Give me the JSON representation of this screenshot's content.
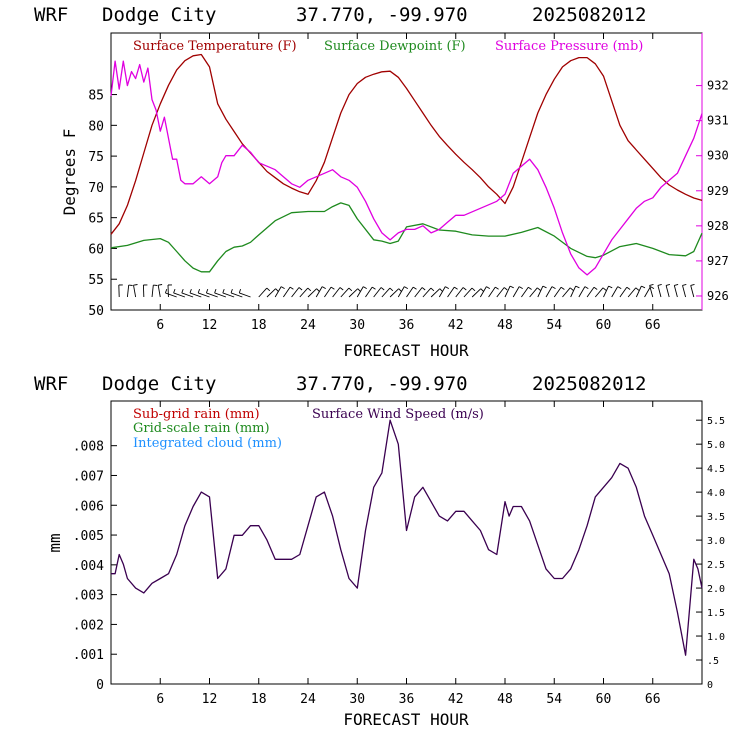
{
  "colors": {
    "temperature": "#a00000",
    "dewpoint": "#1e8a1e",
    "pressure": "#e000e0",
    "subgrid_rain": "#c00000",
    "gridscale_rain": "#1e8a1e",
    "cloud": "#1e90ff",
    "wind": "#3a0050"
  },
  "chart_data": [
    {
      "type": "line",
      "header": {
        "model": "WRF",
        "station": "Dodge City",
        "coords": "37.770, -99.970",
        "run": "2025082012"
      },
      "xlabel": "FORECAST HOUR",
      "ylabel": "Degrees F",
      "xlim": [
        0,
        72
      ],
      "ylim": [
        50,
        95
      ],
      "y2lim": [
        925.6,
        933.5
      ],
      "xticks": [
        6,
        12,
        18,
        24,
        30,
        36,
        42,
        48,
        54,
        60,
        66
      ],
      "xtick_labels": [
        "6",
        "12",
        "18",
        "24",
        "30",
        "36",
        "42",
        "48",
        "54",
        "60",
        "66"
      ],
      "yticks": [
        50,
        55,
        60,
        65,
        70,
        75,
        80,
        85
      ],
      "ytick_labels": [
        "50",
        "55",
        "60",
        "65",
        "70",
        "75",
        "80",
        "85"
      ],
      "y2ticks": [
        926,
        927,
        928,
        929,
        930,
        931,
        932
      ],
      "y2tick_labels": [
        "926",
        "927",
        "928",
        "929",
        "930",
        "931",
        "932"
      ],
      "series": [
        {
          "name": "Surface Temperature (F)",
          "axis": "left",
          "x": [
            0,
            1,
            2,
            3,
            4,
            5,
            6,
            7,
            8,
            9,
            10,
            11,
            12,
            13,
            14,
            15,
            16,
            17,
            18,
            19,
            20,
            21,
            22,
            23,
            24,
            25,
            26,
            27,
            28,
            29,
            30,
            31,
            32,
            33,
            34,
            35,
            36,
            37,
            38,
            39,
            40,
            41,
            42,
            43,
            44,
            45,
            46,
            47,
            48,
            49,
            50,
            51,
            52,
            53,
            54,
            55,
            56,
            57,
            58,
            59,
            60,
            61,
            62,
            63,
            64,
            65,
            66,
            67,
            68,
            69,
            70,
            71,
            72
          ],
          "y": [
            62.3,
            64,
            67,
            71,
            75.5,
            80,
            83.5,
            86.5,
            89,
            90.5,
            91.3,
            91.5,
            89.5,
            83.5,
            81,
            79,
            77,
            75.5,
            74,
            72.5,
            71.5,
            70.5,
            69.8,
            69.2,
            68.8,
            71,
            74,
            78,
            82,
            85,
            86.8,
            87.8,
            88.3,
            88.7,
            88.8,
            87.8,
            86,
            84,
            82,
            80,
            78.2,
            76.7,
            75.3,
            74,
            72.8,
            71.5,
            70,
            68.8,
            67.3,
            70,
            74,
            78,
            82,
            85,
            87.5,
            89.5,
            90.5,
            91,
            91,
            90,
            88,
            84,
            80,
            77.5,
            76,
            74.5,
            73,
            71.5,
            70.3,
            69.5,
            68.8,
            68.2,
            67.8
          ]
        },
        {
          "name": "Surface Dewpoint (F)",
          "axis": "left",
          "x": [
            0,
            2,
            4,
            6,
            7,
            8,
            9,
            10,
            11,
            12,
            13,
            14,
            15,
            16,
            17,
            18,
            20,
            22,
            24,
            26,
            27,
            28,
            29,
            30,
            32,
            33,
            34,
            35,
            36,
            38,
            40,
            42,
            44,
            46,
            48,
            50,
            52,
            54,
            56,
            58,
            59,
            60,
            62,
            64,
            66,
            68,
            70,
            71,
            72
          ],
          "y": [
            60.1,
            60.5,
            61.3,
            61.6,
            61,
            59.5,
            58,
            56.8,
            56.2,
            56.2,
            58,
            59.5,
            60.2,
            60.4,
            61,
            62.2,
            64.5,
            65.8,
            66,
            66,
            66.8,
            67.4,
            67,
            64.8,
            61.4,
            61.2,
            60.8,
            61.2,
            63.5,
            64,
            63,
            62.8,
            62.2,
            62,
            62,
            62.6,
            63.4,
            62,
            60,
            58.7,
            58.5,
            58.9,
            60.3,
            60.8,
            60,
            59,
            58.8,
            59.5,
            62.5
          ]
        },
        {
          "name": "Surface Pressure (mb)",
          "axis": "right",
          "x": [
            0,
            0.5,
            1,
            1.5,
            2,
            2.5,
            3,
            3.5,
            4,
            4.5,
            5,
            5.5,
            6,
            6.5,
            7,
            7.5,
            8,
            8.5,
            9,
            10,
            11,
            12,
            13,
            13.5,
            14,
            15,
            16,
            17,
            18,
            19,
            20,
            21,
            22,
            23,
            24,
            25,
            26,
            27,
            28,
            29,
            30,
            31,
            32,
            33,
            34,
            35,
            36,
            37,
            38,
            39,
            40,
            41,
            42,
            43,
            44,
            45,
            46,
            47,
            48,
            49,
            50,
            51,
            52,
            53,
            54,
            55,
            56,
            57,
            58,
            59,
            60,
            61,
            62,
            63,
            64,
            65,
            66,
            67,
            68,
            69,
            70,
            71,
            72
          ],
          "y": [
            931.7,
            932.7,
            931.9,
            932.7,
            932,
            932.4,
            932.2,
            932.6,
            932.1,
            932.5,
            931.6,
            931.3,
            930.7,
            931.1,
            930.5,
            929.9,
            929.9,
            929.3,
            929.2,
            929.2,
            929.4,
            929.2,
            929.4,
            929.8,
            930,
            930,
            930.3,
            930.1,
            929.8,
            929.7,
            929.6,
            929.4,
            929.2,
            929.1,
            929.3,
            929.4,
            929.5,
            929.6,
            929.4,
            929.3,
            929.1,
            928.7,
            928.2,
            927.8,
            927.6,
            927.8,
            927.9,
            927.9,
            928,
            927.8,
            927.9,
            928.1,
            928.3,
            928.3,
            928.4,
            928.5,
            928.6,
            928.7,
            928.9,
            929.5,
            929.7,
            929.9,
            929.6,
            929.1,
            928.5,
            927.8,
            927.2,
            926.8,
            926.6,
            926.8,
            927.2,
            927.6,
            927.9,
            928.2,
            928.5,
            928.7,
            928.8,
            929.1,
            929.3,
            929.5,
            930,
            930.5,
            931.2
          ]
        }
      ],
      "wind_barbs": "Wind barbs drawn along the bottom of the panel at each forecast hour"
    },
    {
      "type": "line",
      "header": {
        "model": "WRF",
        "station": "Dodge City",
        "coords": "37.770, -99.970",
        "run": "2025082012"
      },
      "xlabel": "FORECAST HOUR",
      "ylabel": "mm",
      "xlim": [
        0,
        72
      ],
      "ylim": [
        0,
        0.0095
      ],
      "y2lim": [
        0,
        5.9
      ],
      "xticks": [
        6,
        12,
        18,
        24,
        30,
        36,
        42,
        48,
        54,
        60,
        66
      ],
      "xtick_labels": [
        "6",
        "12",
        "18",
        "24",
        "30",
        "36",
        "42",
        "48",
        "54",
        "60",
        "66"
      ],
      "yticks": [
        0,
        0.001,
        0.002,
        0.003,
        0.004,
        0.005,
        0.006,
        0.007,
        0.008
      ],
      "ytick_labels": [
        "0",
        ".001",
        ".002",
        ".003",
        ".004",
        ".005",
        ".006",
        ".007",
        ".008"
      ],
      "y2ticks": [
        0,
        0.5,
        1,
        1.5,
        2,
        2.5,
        3,
        3.5,
        4,
        4.5,
        5,
        5.5
      ],
      "y2tick_labels": [
        "0",
        ".5",
        "1.0",
        "1.5",
        "2.0",
        "2.5",
        "3.0",
        "3.5",
        "4.0",
        "4.5",
        "5.0",
        "5.5"
      ],
      "series": [
        {
          "name": "Sub-grid rain (mm)",
          "axis": "left",
          "x": [],
          "y": []
        },
        {
          "name": "Grid-scale rain (mm)",
          "axis": "left",
          "x": [],
          "y": []
        },
        {
          "name": "Integrated cloud (mm)",
          "axis": "left",
          "x": [],
          "y": []
        },
        {
          "name": "Surface Wind Speed (m/s)",
          "axis": "right",
          "x": [
            0,
            0.5,
            1,
            1.5,
            2,
            3,
            4,
            5,
            6,
            7,
            8,
            9,
            10,
            11,
            12,
            13,
            14,
            15,
            16,
            17,
            18,
            19,
            20,
            21,
            22,
            23,
            24,
            25,
            26,
            27,
            28,
            29,
            30,
            31,
            32,
            33,
            34,
            35,
            36,
            37,
            38,
            39,
            40,
            41,
            42,
            43,
            44,
            45,
            46,
            47,
            48,
            48.5,
            49,
            50,
            51,
            52,
            53,
            54,
            55,
            56,
            57,
            58,
            59,
            60,
            61,
            62,
            63,
            64,
            65,
            66,
            67,
            68,
            69,
            70,
            70.5,
            71,
            71.5,
            72
          ],
          "y": [
            2.3,
            2.3,
            2.7,
            2.5,
            2.2,
            2,
            1.9,
            2.1,
            2.2,
            2.3,
            2.7,
            3.3,
            3.7,
            4,
            3.9,
            2.2,
            2.4,
            3.1,
            3.1,
            3.3,
            3.3,
            3,
            2.6,
            2.6,
            2.6,
            2.7,
            3.3,
            3.9,
            4,
            3.5,
            2.8,
            2.2,
            2,
            3.2,
            4.1,
            4.4,
            5.5,
            5,
            3.2,
            3.9,
            4.1,
            3.8,
            3.5,
            3.4,
            3.6,
            3.6,
            3.4,
            3.2,
            2.8,
            2.7,
            3.8,
            3.5,
            3.7,
            3.7,
            3.4,
            2.9,
            2.4,
            2.2,
            2.2,
            2.4,
            2.8,
            3.3,
            3.9,
            4.1,
            4.3,
            4.6,
            4.5,
            4.1,
            3.5,
            3.1,
            2.7,
            2.3,
            1.5,
            0.6,
            1.6,
            2.6,
            2.4,
            2
          ]
        }
      ]
    }
  ]
}
